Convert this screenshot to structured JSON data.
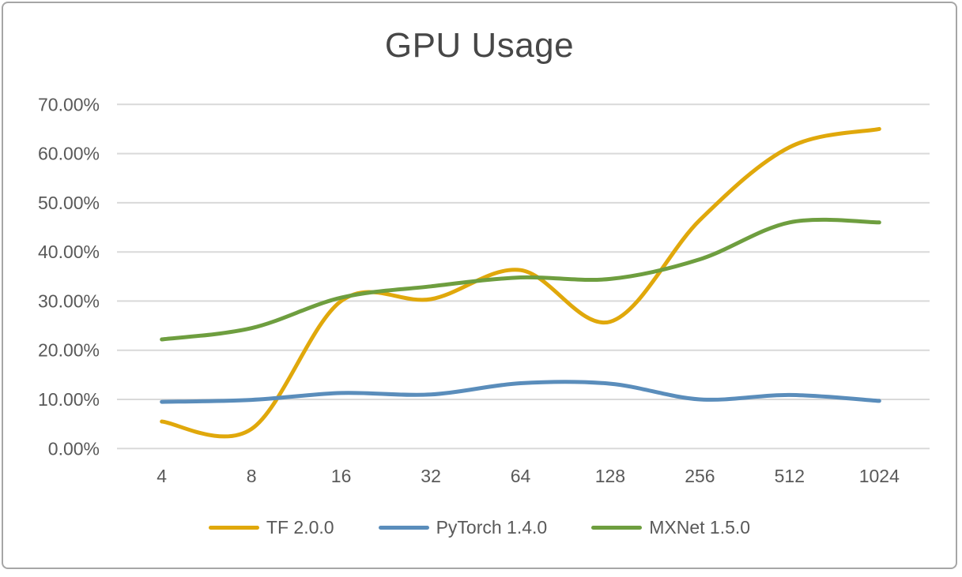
{
  "chart_data": {
    "type": "line",
    "title": "GPU Usage",
    "categories": [
      "4",
      "8",
      "16",
      "32",
      "64",
      "128",
      "256",
      "512",
      "1024"
    ],
    "series": [
      {
        "name": "TF 2.0.0",
        "color": "#E0A80B",
        "values": [
          5.5,
          4.0,
          30.0,
          30.4,
          36.3,
          25.8,
          46.5,
          61.3,
          65.0
        ]
      },
      {
        "name": "PyTorch 1.4.0",
        "color": "#5A8DBB",
        "values": [
          9.5,
          9.9,
          11.3,
          11.0,
          13.3,
          13.2,
          10.0,
          10.9,
          9.7
        ]
      },
      {
        "name": "MXNet 1.5.0",
        "color": "#6E9E3F",
        "values": [
          22.2,
          24.5,
          30.7,
          33.0,
          34.8,
          34.5,
          38.5,
          46.0,
          46.0
        ]
      }
    ],
    "x_axis": {
      "tick_labels": [
        "4",
        "8",
        "16",
        "32",
        "64",
        "128",
        "256",
        "512",
        "1024"
      ]
    },
    "y_axis": {
      "min": 0,
      "max": 70,
      "step": 10,
      "tick_labels": [
        "0.00%",
        "10.00%",
        "20.00%",
        "30.00%",
        "40.00%",
        "50.00%",
        "60.00%",
        "70.00%"
      ]
    },
    "grid": true,
    "legend_position": "bottom",
    "line_style": "smooth",
    "colors": {
      "grid": "#D9D9D9",
      "axis_text": "#595959",
      "title_text": "#474747",
      "frame_border": "#A6A6A6"
    }
  }
}
